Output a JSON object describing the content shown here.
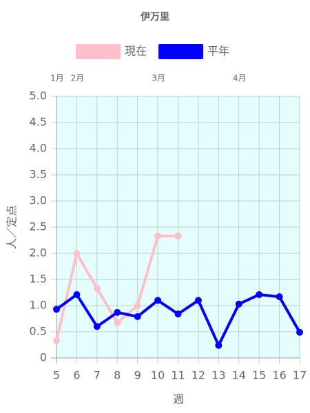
{
  "chart_data": {
    "type": "line",
    "title": "伊万里",
    "x_label": "週",
    "y_label": "人／定点",
    "x": [
      5,
      6,
      7,
      8,
      9,
      10,
      11,
      12,
      13,
      14,
      15,
      16,
      17
    ],
    "series": [
      {
        "name": "現在",
        "color": "#ffc0cb",
        "values": [
          0.33,
          2.0,
          1.33,
          0.67,
          1.0,
          2.33,
          2.33,
          null,
          null,
          null,
          null,
          null,
          null
        ]
      },
      {
        "name": "平年",
        "color": "#0000ff",
        "values": [
          0.93,
          1.21,
          0.6,
          0.87,
          0.79,
          1.1,
          0.84,
          1.1,
          0.24,
          1.03,
          1.21,
          1.17,
          0.49
        ]
      }
    ],
    "xlim": [
      5,
      17
    ],
    "xticks": [
      5,
      6,
      7,
      8,
      9,
      10,
      11,
      12,
      13,
      14,
      15,
      16,
      17
    ],
    "month_ticks": [
      {
        "value": 5,
        "label": "1月"
      },
      {
        "value": 6,
        "label": "2月"
      },
      {
        "value": 10,
        "label": "3月"
      },
      {
        "value": 14,
        "label": "4月"
      }
    ],
    "ylim": [
      0,
      5
    ],
    "yticks": [
      0,
      0.5,
      {
        "value": 1,
        "label": "1.0"
      },
      1.5,
      {
        "value": 2,
        "label": "2.0"
      },
      2.5,
      {
        "value": 3,
        "label": "3.0"
      },
      3.5,
      {
        "value": 4,
        "label": "4.0"
      },
      4.5,
      {
        "value": 5,
        "label": "5.0"
      }
    ],
    "grid": true,
    "background": "#e6fdfe",
    "legend": "top"
  }
}
